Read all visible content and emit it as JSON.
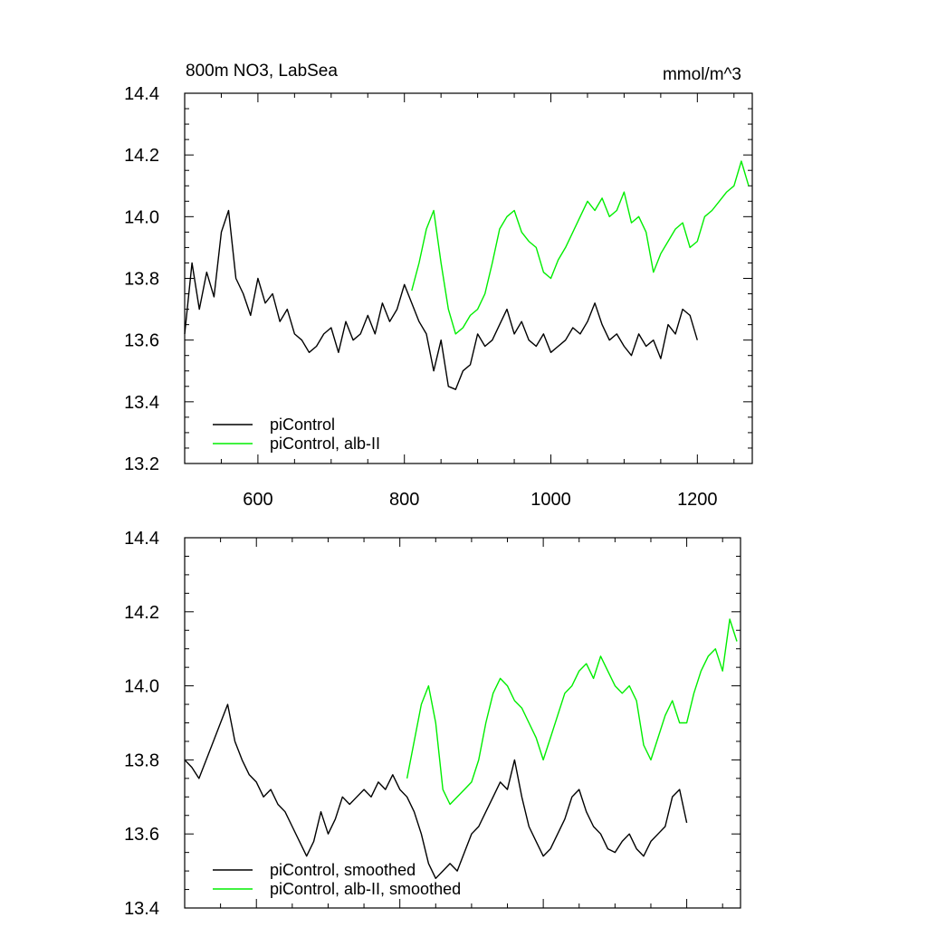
{
  "chart_data": [
    {
      "type": "line",
      "title": "800m NO3, LabSea",
      "units": "mmol/m^3",
      "xlim": [
        500,
        1275
      ],
      "ylim": [
        13.2,
        14.4
      ],
      "xticks": [
        600,
        800,
        1000,
        1200
      ],
      "yticks": [
        13.2,
        13.4,
        13.6,
        13.8,
        14.0,
        14.2,
        14.4
      ],
      "xtick_labels": [
        "600",
        "800",
        "1000",
        "1200"
      ],
      "ytick_labels": [
        "13.2",
        "13.4",
        "13.6",
        "13.8",
        "14.0",
        "14.2",
        "14.4"
      ],
      "legend_position": "bottom-left",
      "series": [
        {
          "name": "piControl",
          "color": "#000000",
          "x": [
            500,
            510,
            520,
            530,
            540,
            550,
            560,
            570,
            580,
            590,
            600,
            610,
            620,
            630,
            640,
            650,
            660,
            670,
            680,
            690,
            700,
            710,
            720,
            730,
            740,
            750,
            760,
            770,
            780,
            790,
            800,
            810,
            820,
            830,
            840,
            850,
            860,
            870,
            880,
            890,
            900,
            910,
            920,
            930,
            940,
            950,
            960,
            970,
            980,
            990,
            1000,
            1010,
            1020,
            1030,
            1040,
            1050,
            1060,
            1070,
            1080,
            1090,
            1100,
            1110,
            1120,
            1130,
            1140,
            1150,
            1160,
            1170,
            1180,
            1190,
            1200
          ],
          "y": [
            13.62,
            13.85,
            13.7,
            13.82,
            13.74,
            13.95,
            14.02,
            13.8,
            13.75,
            13.68,
            13.8,
            13.72,
            13.75,
            13.66,
            13.7,
            13.62,
            13.6,
            13.56,
            13.58,
            13.62,
            13.64,
            13.56,
            13.66,
            13.6,
            13.62,
            13.68,
            13.62,
            13.72,
            13.66,
            13.7,
            13.78,
            13.72,
            13.66,
            13.62,
            13.5,
            13.6,
            13.45,
            13.44,
            13.5,
            13.52,
            13.62,
            13.58,
            13.6,
            13.65,
            13.7,
            13.62,
            13.66,
            13.6,
            13.58,
            13.62,
            13.56,
            13.58,
            13.6,
            13.64,
            13.62,
            13.66,
            13.72,
            13.65,
            13.6,
            13.62,
            13.58,
            13.55,
            13.62,
            13.58,
            13.6,
            13.54,
            13.65,
            13.62,
            13.7,
            13.68,
            13.6
          ]
        },
        {
          "name": "piControl, alb-II",
          "color": "#00ee00",
          "x": [
            810,
            820,
            830,
            840,
            850,
            860,
            870,
            880,
            890,
            900,
            910,
            920,
            930,
            940,
            950,
            960,
            970,
            980,
            990,
            1000,
            1010,
            1020,
            1030,
            1040,
            1050,
            1060,
            1070,
            1080,
            1090,
            1100,
            1110,
            1120,
            1130,
            1140,
            1150,
            1160,
            1170,
            1180,
            1190,
            1200,
            1210,
            1220,
            1230,
            1240,
            1250,
            1260,
            1270
          ],
          "y": [
            13.76,
            13.85,
            13.96,
            14.02,
            13.85,
            13.7,
            13.62,
            13.64,
            13.68,
            13.7,
            13.75,
            13.85,
            13.96,
            14.0,
            14.02,
            13.95,
            13.92,
            13.9,
            13.82,
            13.8,
            13.86,
            13.9,
            13.95,
            14.0,
            14.05,
            14.02,
            14.06,
            14.0,
            14.02,
            14.08,
            13.98,
            14.0,
            13.95,
            13.82,
            13.88,
            13.92,
            13.96,
            13.98,
            13.9,
            13.92,
            14.0,
            14.02,
            14.05,
            14.08,
            14.1,
            14.18,
            14.1
          ]
        }
      ]
    },
    {
      "type": "line",
      "xlim": [
        500,
        1275
      ],
      "ylim": [
        13.4,
        14.4
      ],
      "yticks": [
        13.4,
        13.6,
        13.8,
        14.0,
        14.2,
        14.4
      ],
      "ytick_labels": [
        "13.4",
        "13.6",
        "13.8",
        "14.0",
        "14.2",
        "14.4"
      ],
      "legend_position": "bottom-left",
      "series": [
        {
          "name": "piControl, smoothed",
          "color": "#000000",
          "x": [
            500,
            510,
            520,
            530,
            540,
            550,
            560,
            570,
            580,
            590,
            600,
            610,
            620,
            630,
            640,
            650,
            660,
            670,
            680,
            690,
            700,
            710,
            720,
            730,
            740,
            750,
            760,
            770,
            780,
            790,
            800,
            810,
            820,
            830,
            840,
            850,
            860,
            870,
            880,
            890,
            900,
            910,
            920,
            930,
            940,
            950,
            960,
            970,
            980,
            990,
            1000,
            1010,
            1020,
            1030,
            1040,
            1050,
            1060,
            1070,
            1080,
            1090,
            1100,
            1110,
            1120,
            1130,
            1140,
            1150,
            1160,
            1170,
            1180,
            1190,
            1200
          ],
          "y": [
            13.8,
            13.78,
            13.75,
            13.8,
            13.85,
            13.9,
            13.95,
            13.85,
            13.8,
            13.76,
            13.74,
            13.7,
            13.72,
            13.68,
            13.66,
            13.62,
            13.58,
            13.54,
            13.58,
            13.66,
            13.6,
            13.64,
            13.7,
            13.68,
            13.7,
            13.72,
            13.7,
            13.74,
            13.72,
            13.76,
            13.72,
            13.7,
            13.66,
            13.6,
            13.52,
            13.48,
            13.5,
            13.52,
            13.5,
            13.55,
            13.6,
            13.62,
            13.66,
            13.7,
            13.74,
            13.72,
            13.8,
            13.7,
            13.62,
            13.58,
            13.54,
            13.56,
            13.6,
            13.64,
            13.7,
            13.72,
            13.66,
            13.62,
            13.6,
            13.56,
            13.55,
            13.58,
            13.6,
            13.56,
            13.54,
            13.58,
            13.6,
            13.62,
            13.7,
            13.72,
            13.63
          ]
        },
        {
          "name": "piControl, alb-II, smoothed",
          "color": "#00ee00",
          "x": [
            810,
            820,
            830,
            840,
            850,
            860,
            870,
            880,
            890,
            900,
            910,
            920,
            930,
            940,
            950,
            960,
            970,
            980,
            990,
            1000,
            1010,
            1020,
            1030,
            1040,
            1050,
            1060,
            1070,
            1080,
            1090,
            1100,
            1110,
            1120,
            1130,
            1140,
            1150,
            1160,
            1170,
            1180,
            1190,
            1200,
            1210,
            1220,
            1230,
            1240,
            1250,
            1260,
            1270
          ],
          "y": [
            13.75,
            13.85,
            13.95,
            14.0,
            13.9,
            13.72,
            13.68,
            13.7,
            13.72,
            13.74,
            13.8,
            13.9,
            13.98,
            14.02,
            14.0,
            13.96,
            13.94,
            13.9,
            13.86,
            13.8,
            13.86,
            13.92,
            13.98,
            14.0,
            14.04,
            14.06,
            14.02,
            14.08,
            14.04,
            14.0,
            13.98,
            14.0,
            13.96,
            13.84,
            13.8,
            13.86,
            13.92,
            13.96,
            13.9,
            13.9,
            13.98,
            14.04,
            14.08,
            14.1,
            14.04,
            14.18,
            14.12
          ]
        }
      ]
    }
  ]
}
